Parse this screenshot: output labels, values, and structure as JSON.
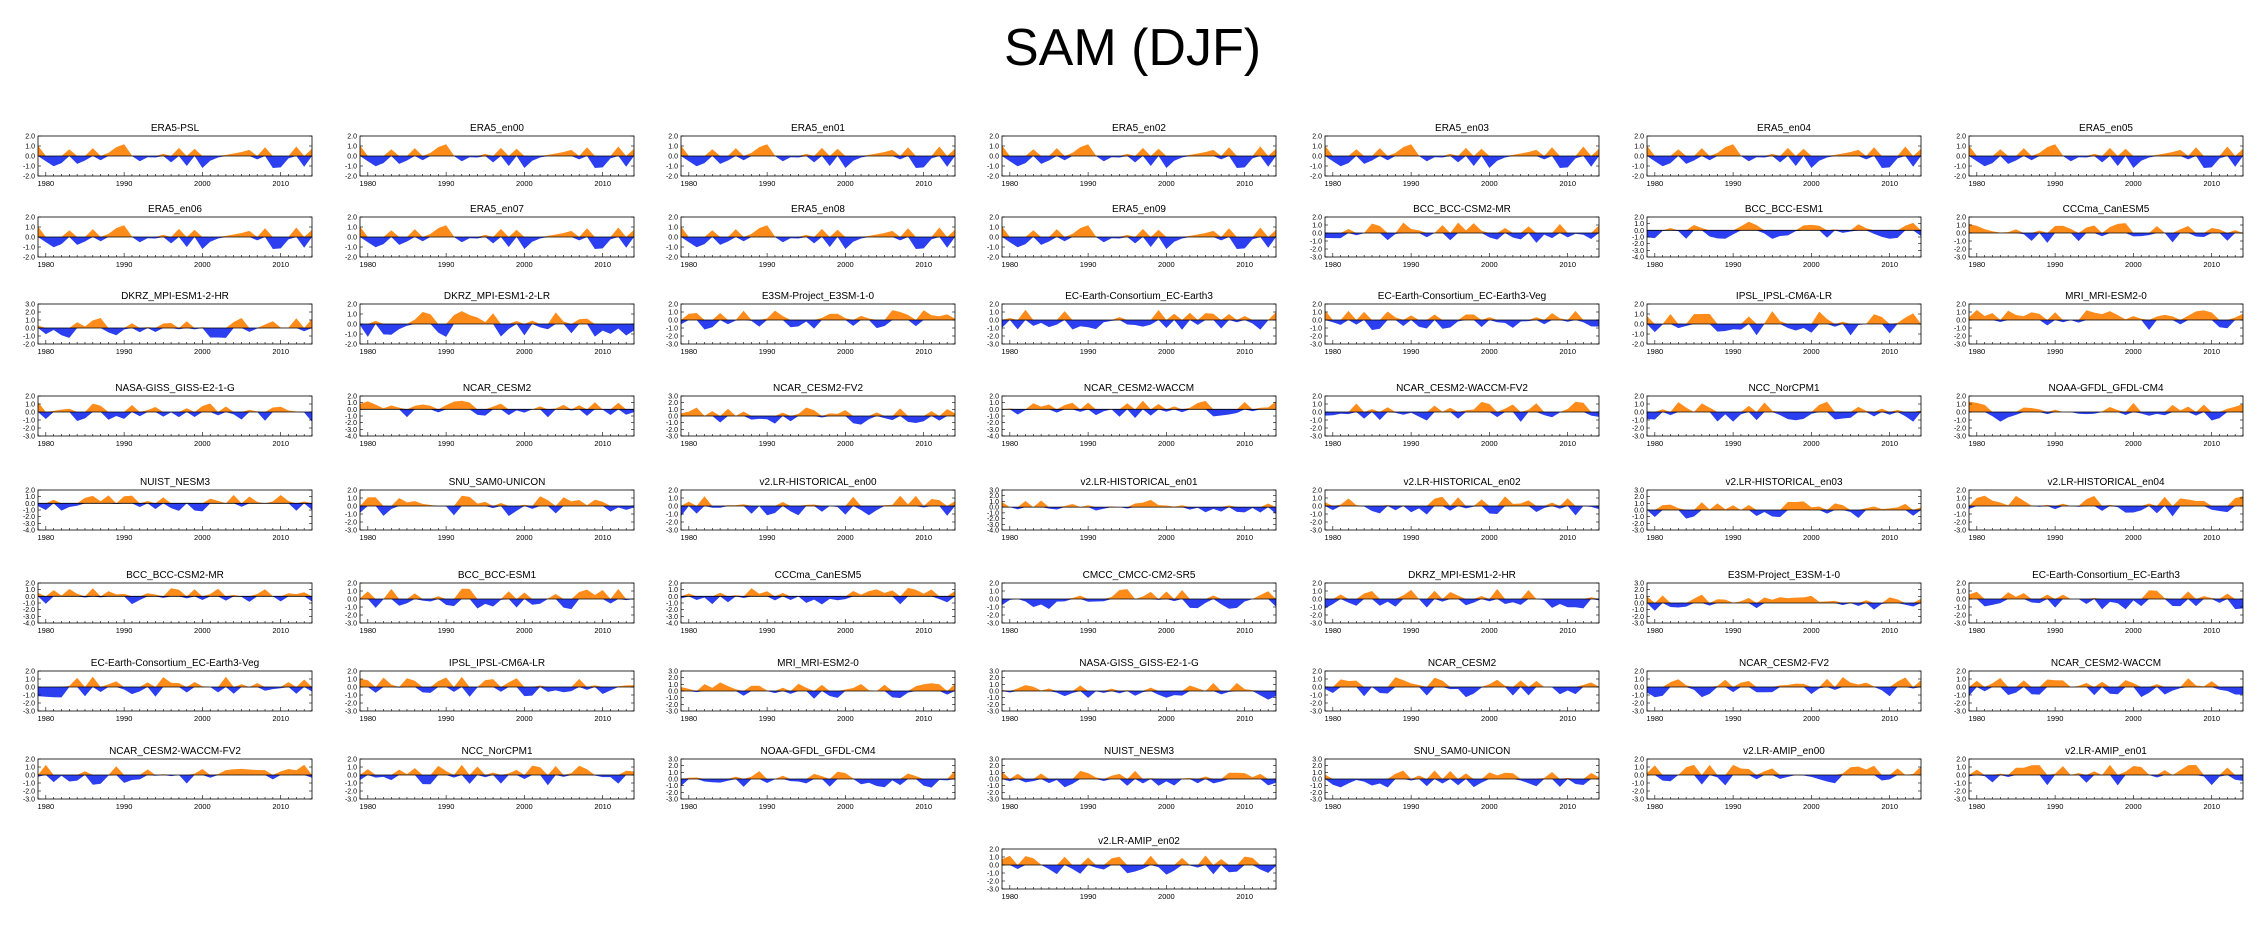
{
  "title": "SAM (DJF)",
  "colors": {
    "positive": "#ff8c1a",
    "negative": "#2b3ff0",
    "axis": "#000000"
  },
  "x_ticks": [
    1980,
    1990,
    2000,
    2010
  ],
  "x_range": [
    1979,
    2014
  ],
  "chart_data": [
    {
      "type": "area",
      "title": "ERA5-PSL",
      "y_ticks": [
        "2.0",
        "1.0",
        "0.0",
        "-1.0",
        "-2.0"
      ],
      "ylim": [
        -2,
        2
      ],
      "seed": 11
    },
    {
      "type": "area",
      "title": "ERA5_en00",
      "y_ticks": [
        "2.0",
        "1.0",
        "0.0",
        "-1.0",
        "-2.0"
      ],
      "ylim": [
        -2,
        2
      ],
      "seed": 11
    },
    {
      "type": "area",
      "title": "ERA5_en01",
      "y_ticks": [
        "2.0",
        "1.0",
        "0.0",
        "-1.0",
        "-2.0"
      ],
      "ylim": [
        -2,
        2
      ],
      "seed": 11
    },
    {
      "type": "area",
      "title": "ERA5_en02",
      "y_ticks": [
        "2.0",
        "1.0",
        "0.0",
        "-1.0",
        "-2.0"
      ],
      "ylim": [
        -2,
        2
      ],
      "seed": 11
    },
    {
      "type": "area",
      "title": "ERA5_en03",
      "y_ticks": [
        "2.0",
        "1.0",
        "0.0",
        "-1.0",
        "-2.0"
      ],
      "ylim": [
        -2,
        2
      ],
      "seed": 11
    },
    {
      "type": "area",
      "title": "ERA5_en04",
      "y_ticks": [
        "2.0",
        "1.0",
        "0.0",
        "-1.0",
        "-2.0"
      ],
      "ylim": [
        -2,
        2
      ],
      "seed": 11
    },
    {
      "type": "area",
      "title": "ERA5_en05",
      "y_ticks": [
        "2.0",
        "1.0",
        "0.0",
        "-1.0",
        "-2.0"
      ],
      "ylim": [
        -2,
        2
      ],
      "seed": 11
    },
    {
      "type": "area",
      "title": "ERA5_en06",
      "y_ticks": [
        "2.0",
        "1.0",
        "0.0",
        "-1.0",
        "-2.0"
      ],
      "ylim": [
        -2,
        2
      ],
      "seed": 11
    },
    {
      "type": "area",
      "title": "ERA5_en07",
      "y_ticks": [
        "2.0",
        "1.0",
        "0.0",
        "-1.0",
        "-2.0"
      ],
      "ylim": [
        -2,
        2
      ],
      "seed": 11
    },
    {
      "type": "area",
      "title": "ERA5_en08",
      "y_ticks": [
        "2.0",
        "1.0",
        "0.0",
        "-1.0",
        "-2.0"
      ],
      "ylim": [
        -2,
        2
      ],
      "seed": 11
    },
    {
      "type": "area",
      "title": "ERA5_en09",
      "y_ticks": [
        "2.0",
        "1.0",
        "0.0",
        "-1.0",
        "-2.0"
      ],
      "ylim": [
        -2,
        2
      ],
      "seed": 11
    },
    {
      "type": "area",
      "title": "BCC_BCC-CSM2-MR",
      "y_ticks": [
        "2.0",
        "1.0",
        "0.0",
        "-1.0",
        "-2.0",
        "-3.0"
      ],
      "ylim": [
        -3,
        2
      ],
      "seed": 21
    },
    {
      "type": "area",
      "title": "BCC_BCC-ESM1",
      "y_ticks": [
        "2.0",
        "1.0",
        "0.0",
        "-1.0",
        "-2.0",
        "-3.0",
        "-4.0"
      ],
      "ylim": [
        -4,
        2
      ],
      "seed": 22
    },
    {
      "type": "area",
      "title": "CCCma_CanESM5",
      "y_ticks": [
        "2.0",
        "1.0",
        "0.0",
        "-1.0",
        "-2.0",
        "-3.0"
      ],
      "ylim": [
        -3,
        2
      ],
      "seed": 23
    },
    {
      "type": "area",
      "title": "DKRZ_MPI-ESM1-2-HR",
      "y_ticks": [
        "3.0",
        "2.0",
        "1.0",
        "0.0",
        "-1.0",
        "-2.0"
      ],
      "ylim": [
        -2,
        3
      ],
      "seed": 31
    },
    {
      "type": "area",
      "title": "DKRZ_MPI-ESM1-2-LR",
      "y_ticks": [
        "2.0",
        "1.0",
        "0.0",
        "-1.0",
        "-2.0"
      ],
      "ylim": [
        -2,
        2
      ],
      "seed": 32
    },
    {
      "type": "area",
      "title": "E3SM-Project_E3SM-1-0",
      "y_ticks": [
        "2.0",
        "1.0",
        "0.0",
        "-1.0",
        "-2.0",
        "-3.0"
      ],
      "ylim": [
        -3,
        2
      ],
      "seed": 33
    },
    {
      "type": "area",
      "title": "EC-Earth-Consortium_EC-Earth3",
      "y_ticks": [
        "2.0",
        "1.0",
        "0.0",
        "-1.0",
        "-2.0",
        "-3.0"
      ],
      "ylim": [
        -3,
        2
      ],
      "seed": 34
    },
    {
      "type": "area",
      "title": "EC-Earth-Consortium_EC-Earth3-Veg",
      "y_ticks": [
        "2.0",
        "1.0",
        "0.0",
        "-1.0",
        "-2.0",
        "-3.0"
      ],
      "ylim": [
        -3,
        2
      ],
      "seed": 35
    },
    {
      "type": "area",
      "title": "IPSL_IPSL-CM6A-LR",
      "y_ticks": [
        "2.0",
        "1.0",
        "0.0",
        "-1.0",
        "-2.0"
      ],
      "ylim": [
        -2,
        2
      ],
      "seed": 36
    },
    {
      "type": "area",
      "title": "MRI_MRI-ESM2-0",
      "y_ticks": [
        "2.0",
        "1.0",
        "0.0",
        "-1.0",
        "-2.0",
        "-3.0"
      ],
      "ylim": [
        -3,
        2
      ],
      "seed": 37
    },
    {
      "type": "area",
      "title": "NASA-GISS_GISS-E2-1-G",
      "y_ticks": [
        "2.0",
        "1.0",
        "0.0",
        "-1.0",
        "-2.0",
        "-3.0"
      ],
      "ylim": [
        -3,
        2
      ],
      "seed": 41
    },
    {
      "type": "area",
      "title": "NCAR_CESM2",
      "y_ticks": [
        "2.0",
        "1.0",
        "0.0",
        "-1.0",
        "-2.0",
        "-3.0",
        "-4.0"
      ],
      "ylim": [
        -4,
        2
      ],
      "seed": 42
    },
    {
      "type": "area",
      "title": "NCAR_CESM2-FV2",
      "y_ticks": [
        "3.0",
        "2.0",
        "1.0",
        "0.0",
        "-1.0",
        "-2.0",
        "-3.0"
      ],
      "ylim": [
        -3,
        3
      ],
      "seed": 43
    },
    {
      "type": "area",
      "title": "NCAR_CESM2-WACCM",
      "y_ticks": [
        "2.0",
        "1.0",
        "0.0",
        "-1.0",
        "-2.0",
        "-3.0",
        "-4.0"
      ],
      "ylim": [
        -4,
        2
      ],
      "seed": 44
    },
    {
      "type": "area",
      "title": "NCAR_CESM2-WACCM-FV2",
      "y_ticks": [
        "2.0",
        "1.0",
        "0.0",
        "-1.0",
        "-2.0",
        "-3.0"
      ],
      "ylim": [
        -3,
        2
      ],
      "seed": 45
    },
    {
      "type": "area",
      "title": "NCC_NorCPM1",
      "y_ticks": [
        "2.0",
        "1.0",
        "0.0",
        "-1.0",
        "-2.0",
        "-3.0"
      ],
      "ylim": [
        -3,
        2
      ],
      "seed": 46
    },
    {
      "type": "area",
      "title": "NOAA-GFDL_GFDL-CM4",
      "y_ticks": [
        "2.0",
        "1.0",
        "0.0",
        "-1.0",
        "-2.0",
        "-3.0"
      ],
      "ylim": [
        -3,
        2
      ],
      "seed": 47
    },
    {
      "type": "area",
      "title": "NUIST_NESM3",
      "y_ticks": [
        "2.0",
        "1.0",
        "0.0",
        "-1.0",
        "-2.0",
        "-3.0",
        "-4.0"
      ],
      "ylim": [
        -4,
        2
      ],
      "seed": 51
    },
    {
      "type": "area",
      "title": "SNU_SAM0-UNICON",
      "y_ticks": [
        "2.0",
        "1.0",
        "0.0",
        "-1.0",
        "-2.0",
        "-3.0"
      ],
      "ylim": [
        -3,
        2
      ],
      "seed": 52
    },
    {
      "type": "area",
      "title": "v2.LR-HISTORICAL_en00",
      "y_ticks": [
        "2.0",
        "1.0",
        "0.0",
        "-1.0",
        "-2.0",
        "-3.0"
      ],
      "ylim": [
        -3,
        2
      ],
      "seed": 53
    },
    {
      "type": "area",
      "title": "v2.LR-HISTORICAL_en01",
      "y_ticks": [
        "3.0",
        "2.0",
        "1.0",
        "0.0",
        "-1.0",
        "-2.0",
        "-3.0",
        "-4.0"
      ],
      "ylim": [
        -4,
        3
      ],
      "seed": 54
    },
    {
      "type": "area",
      "title": "v2.LR-HISTORICAL_en02",
      "y_ticks": [
        "2.0",
        "1.0",
        "0.0",
        "-1.0",
        "-2.0",
        "-3.0"
      ],
      "ylim": [
        -3,
        2
      ],
      "seed": 55
    },
    {
      "type": "area",
      "title": "v2.LR-HISTORICAL_en03",
      "y_ticks": [
        "3.0",
        "2.0",
        "1.0",
        "0.0",
        "-1.0",
        "-2.0",
        "-3.0"
      ],
      "ylim": [
        -3,
        3
      ],
      "seed": 56
    },
    {
      "type": "area",
      "title": "v2.LR-HISTORICAL_en04",
      "y_ticks": [
        "2.0",
        "1.0",
        "0.0",
        "-1.0",
        "-2.0",
        "-3.0"
      ],
      "ylim": [
        -3,
        2
      ],
      "seed": 57
    },
    {
      "type": "area",
      "title": "BCC_BCC-CSM2-MR",
      "y_ticks": [
        "2.0",
        "1.0",
        "0.0",
        "-1.0",
        "-2.0",
        "-3.0",
        "-4.0"
      ],
      "ylim": [
        -4,
        2
      ],
      "seed": 61
    },
    {
      "type": "area",
      "title": "BCC_BCC-ESM1",
      "y_ticks": [
        "2.0",
        "1.0",
        "0.0",
        "-1.0",
        "-2.0",
        "-3.0"
      ],
      "ylim": [
        -3,
        2
      ],
      "seed": 62
    },
    {
      "type": "area",
      "title": "CCCma_CanESM5",
      "y_ticks": [
        "2.0",
        "1.0",
        "0.0",
        "-1.0",
        "-2.0",
        "-3.0",
        "-4.0"
      ],
      "ylim": [
        -4,
        2
      ],
      "seed": 63
    },
    {
      "type": "area",
      "title": "CMCC_CMCC-CM2-SR5",
      "y_ticks": [
        "2.0",
        "1.0",
        "0.0",
        "-1.0",
        "-2.0",
        "-3.0"
      ],
      "ylim": [
        -3,
        2
      ],
      "seed": 64
    },
    {
      "type": "area",
      "title": "DKRZ_MPI-ESM1-2-HR",
      "y_ticks": [
        "2.0",
        "1.0",
        "0.0",
        "-1.0",
        "-2.0",
        "-3.0"
      ],
      "ylim": [
        -3,
        2
      ],
      "seed": 65
    },
    {
      "type": "area",
      "title": "E3SM-Project_E3SM-1-0",
      "y_ticks": [
        "3.0",
        "2.0",
        "1.0",
        "0.0",
        "-1.0",
        "-2.0",
        "-3.0"
      ],
      "ylim": [
        -3,
        3
      ],
      "seed": 66
    },
    {
      "type": "area",
      "title": "EC-Earth-Consortium_EC-Earth3",
      "y_ticks": [
        "2.0",
        "1.0",
        "0.0",
        "-1.0",
        "-2.0",
        "-3.0"
      ],
      "ylim": [
        -3,
        2
      ],
      "seed": 67
    },
    {
      "type": "area",
      "title": "EC-Earth-Consortium_EC-Earth3-Veg",
      "y_ticks": [
        "2.0",
        "1.0",
        "0.0",
        "-1.0",
        "-2.0",
        "-3.0"
      ],
      "ylim": [
        -3,
        2
      ],
      "seed": 71
    },
    {
      "type": "area",
      "title": "IPSL_IPSL-CM6A-LR",
      "y_ticks": [
        "2.0",
        "1.0",
        "0.0",
        "-1.0",
        "-2.0",
        "-3.0"
      ],
      "ylim": [
        -3,
        2
      ],
      "seed": 72
    },
    {
      "type": "area",
      "title": "MRI_MRI-ESM2-0",
      "y_ticks": [
        "3.0",
        "2.0",
        "1.0",
        "0.0",
        "-1.0",
        "-2.0",
        "-3.0"
      ],
      "ylim": [
        -3,
        3
      ],
      "seed": 73
    },
    {
      "type": "area",
      "title": "NASA-GISS_GISS-E2-1-G",
      "y_ticks": [
        "3.0",
        "2.0",
        "1.0",
        "0.0",
        "-1.0",
        "-2.0",
        "-3.0"
      ],
      "ylim": [
        -3,
        3
      ],
      "seed": 74
    },
    {
      "type": "area",
      "title": "NCAR_CESM2",
      "y_ticks": [
        "2.0",
        "1.0",
        "0.0",
        "-1.0",
        "-2.0",
        "-3.0"
      ],
      "ylim": [
        -3,
        2
      ],
      "seed": 75
    },
    {
      "type": "area",
      "title": "NCAR_CESM2-FV2",
      "y_ticks": [
        "2.0",
        "1.0",
        "0.0",
        "-1.0",
        "-2.0",
        "-3.0"
      ],
      "ylim": [
        -3,
        2
      ],
      "seed": 76
    },
    {
      "type": "area",
      "title": "NCAR_CESM2-WACCM",
      "y_ticks": [
        "2.0",
        "1.0",
        "0.0",
        "-1.0",
        "-2.0",
        "-3.0"
      ],
      "ylim": [
        -3,
        2
      ],
      "seed": 77
    },
    {
      "type": "area",
      "title": "NCAR_CESM2-WACCM-FV2",
      "y_ticks": [
        "2.0",
        "1.0",
        "0.0",
        "-1.0",
        "-2.0",
        "-3.0"
      ],
      "ylim": [
        -3,
        2
      ],
      "seed": 81
    },
    {
      "type": "area",
      "title": "NCC_NorCPM1",
      "y_ticks": [
        "2.0",
        "1.0",
        "0.0",
        "-1.0",
        "-2.0",
        "-3.0"
      ],
      "ylim": [
        -3,
        2
      ],
      "seed": 82
    },
    {
      "type": "area",
      "title": "NOAA-GFDL_GFDL-CM4",
      "y_ticks": [
        "3.0",
        "2.0",
        "1.0",
        "0.0",
        "-1.0",
        "-2.0",
        "-3.0"
      ],
      "ylim": [
        -3,
        3
      ],
      "seed": 83
    },
    {
      "type": "area",
      "title": "NUIST_NESM3",
      "y_ticks": [
        "3.0",
        "2.0",
        "1.0",
        "0.0",
        "-1.0",
        "-2.0",
        "-3.0"
      ],
      "ylim": [
        -3,
        3
      ],
      "seed": 84
    },
    {
      "type": "area",
      "title": "SNU_SAM0-UNICON",
      "y_ticks": [
        "3.0",
        "2.0",
        "1.0",
        "0.0",
        "-1.0",
        "-2.0",
        "-3.0"
      ],
      "ylim": [
        -3,
        3
      ],
      "seed": 85
    },
    {
      "type": "area",
      "title": "v2.LR-AMIP_en00",
      "y_ticks": [
        "2.0",
        "1.0",
        "0.0",
        "-1.0",
        "-2.0",
        "-3.0"
      ],
      "ylim": [
        -3,
        2
      ],
      "seed": 86
    },
    {
      "type": "area",
      "title": "v2.LR-AMIP_en01",
      "y_ticks": [
        "2.0",
        "1.0",
        "0.0",
        "-1.0",
        "-2.0",
        "-3.0"
      ],
      "ylim": [
        -3,
        2
      ],
      "seed": 87
    },
    {
      "type": "area",
      "title": "v2.LR-AMIP_en02",
      "y_ticks": [
        "2.0",
        "1.0",
        "0.0",
        "-1.0",
        "-2.0",
        "-3.0"
      ],
      "ylim": [
        -3,
        2
      ],
      "seed": 91
    }
  ]
}
